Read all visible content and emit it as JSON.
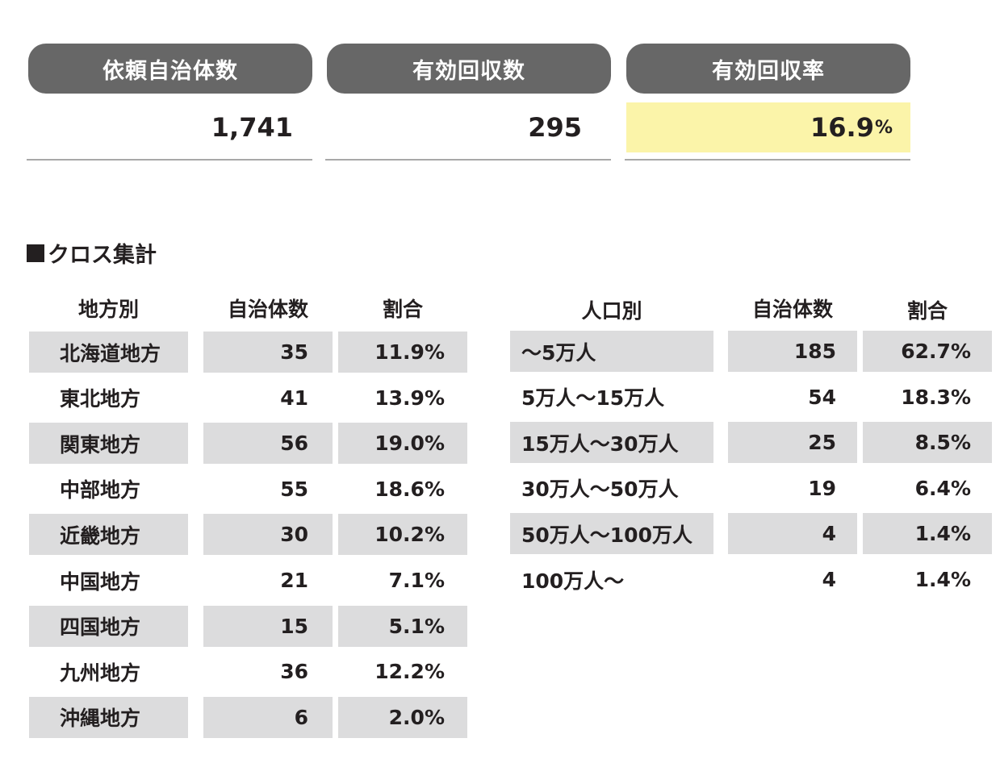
{
  "summary": {
    "requested": {
      "label": "依頼自治体数",
      "value": "1,741"
    },
    "valid_responses": {
      "label": "有効回収数",
      "value": "295"
    },
    "response_rate": {
      "label": "有効回収率",
      "value": "16.9",
      "unit": "%"
    },
    "highlight_color": "#fbf4a9",
    "pill_color": "#676767"
  },
  "cross_tab": {
    "title": "クロス集計",
    "region_table": {
      "headers": [
        "地方別",
        "自治体数",
        "割合"
      ],
      "rows": [
        {
          "label": "北海道地方",
          "count": "35",
          "pct": "11.9%"
        },
        {
          "label": "東北地方",
          "count": "41",
          "pct": "13.9%"
        },
        {
          "label": "関東地方",
          "count": "56",
          "pct": "19.0%"
        },
        {
          "label": "中部地方",
          "count": "55",
          "pct": "18.6%"
        },
        {
          "label": "近畿地方",
          "count": "30",
          "pct": "10.2%"
        },
        {
          "label": "中国地方",
          "count": "21",
          "pct": "7.1%"
        },
        {
          "label": "四国地方",
          "count": "15",
          "pct": "5.1%"
        },
        {
          "label": "九州地方",
          "count": "36",
          "pct": "12.2%"
        },
        {
          "label": "沖縄地方",
          "count": "6",
          "pct": "2.0%"
        }
      ]
    },
    "population_table": {
      "headers": [
        "人口別",
        "自治体数",
        "割合"
      ],
      "rows": [
        {
          "label": "〜5万人",
          "count": "185",
          "pct": "62.7%"
        },
        {
          "label": "5万人〜15万人",
          "count": "54",
          "pct": "18.3%"
        },
        {
          "label": "15万人〜30万人",
          "count": "25",
          "pct": "8.5%"
        },
        {
          "label": "30万人〜50万人",
          "count": "19",
          "pct": "6.4%"
        },
        {
          "label": "50万人〜100万人",
          "count": "4",
          "pct": "1.4%"
        },
        {
          "label": "100万人〜",
          "count": "4",
          "pct": "1.4%"
        }
      ]
    },
    "row_shade_color": "#dcdcdd"
  }
}
